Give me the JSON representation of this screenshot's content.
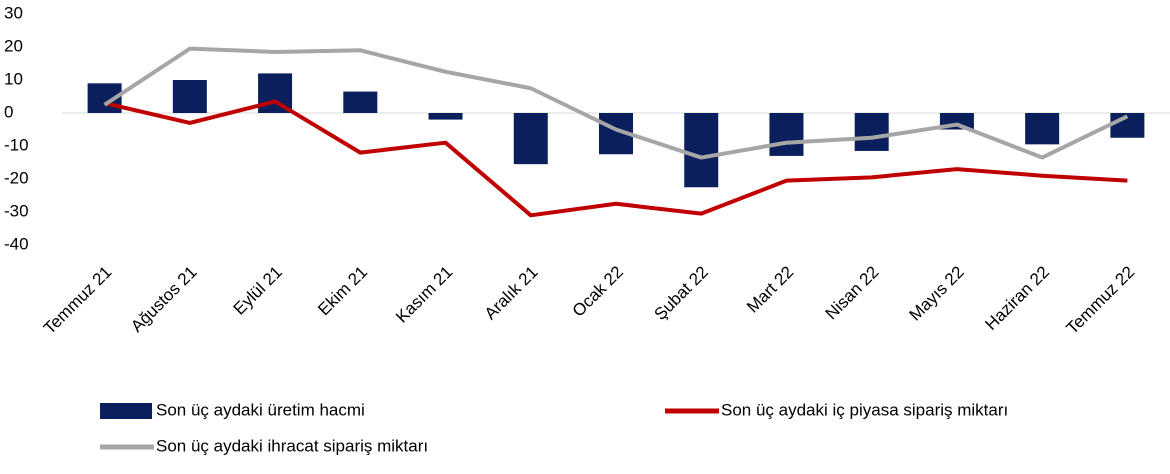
{
  "chart_data": {
    "type": "bar-line",
    "categories": [
      "Temmuz 21",
      "Ağustos 21",
      "Eylül 21",
      "Ekim 21",
      "Kasım 21",
      "Aralık 21",
      "Ocak 22",
      "Şubat 22",
      "Mart 22",
      "Nisan 22",
      "Mayıs 22",
      "Haziran 22",
      "Temmuz 22"
    ],
    "series": [
      {
        "name": "Son üç aydaki üretim hacmi",
        "type": "bar",
        "color": "#0a1f5c",
        "values": [
          9,
          10,
          12,
          6.5,
          -2,
          -15.5,
          -12.5,
          -22.5,
          -13,
          -11.5,
          -5,
          -9.5,
          -7.5
        ]
      },
      {
        "name": "Son üç aydaki iç piyasa sipariş miktarı",
        "type": "line",
        "color": "#c00000",
        "values": [
          3,
          -3,
          3.5,
          -12,
          -9,
          -31,
          -27.5,
          -30.5,
          -20.5,
          -19.5,
          -17,
          -19,
          -20.5
        ]
      },
      {
        "name": "Son üç aydaki ihracat sipariş miktarı",
        "type": "line",
        "color": "#a6a6a6",
        "values": [
          2.5,
          19.5,
          18.5,
          19,
          12.5,
          7.5,
          -5,
          -13.5,
          -9,
          -7.5,
          -3.5,
          -13.5,
          -1
        ]
      }
    ],
    "ylim": [
      -40,
      30
    ],
    "yticks": [
      -40,
      -30,
      -20,
      -10,
      0,
      10,
      20,
      30
    ]
  }
}
